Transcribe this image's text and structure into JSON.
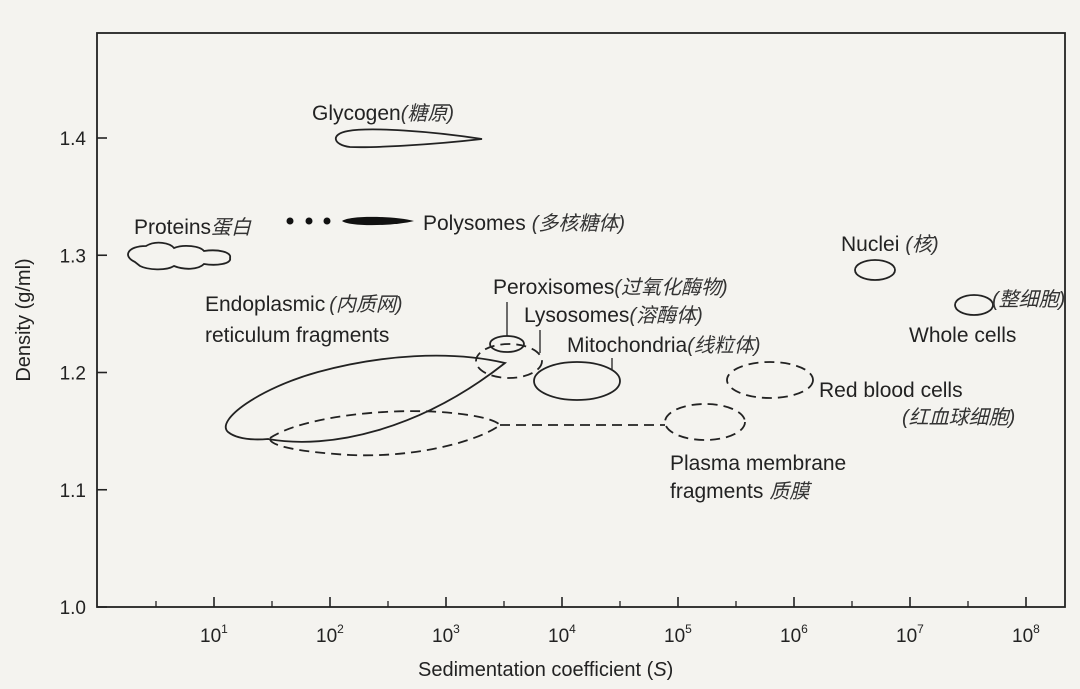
{
  "chart_data": {
    "type": "scatter",
    "title": "",
    "xlabel": "Sedimentation coefficient",
    "xlabel_unit": "S",
    "ylabel": "Density (g/ml)",
    "x_scale": "log",
    "xlim": [
      1,
      100000000.0
    ],
    "ylim": [
      1.0,
      1.4
    ],
    "x_ticks": [
      {
        "base": "10",
        "exp": "1"
      },
      {
        "base": "10",
        "exp": "2"
      },
      {
        "base": "10",
        "exp": "3"
      },
      {
        "base": "10",
        "exp": "4"
      },
      {
        "base": "10",
        "exp": "5"
      },
      {
        "base": "10",
        "exp": "6"
      },
      {
        "base": "10",
        "exp": "7"
      },
      {
        "base": "10",
        "exp": "8"
      }
    ],
    "y_ticks": [
      "1.0",
      "1.1",
      "1.2",
      "1.3",
      "1.4"
    ],
    "grid": false,
    "regions": [
      {
        "name": "Glycogen",
        "annotation": "(糖原)",
        "x_range": [
          100,
          2000
        ],
        "density": 1.4
      },
      {
        "name": "Proteins",
        "annotation": "蛋白",
        "x_range": [
          2,
          20
        ],
        "density": 1.3
      },
      {
        "name": "Polysomes",
        "annotation": "(多核糖体)",
        "x_range": [
          30,
          500
        ],
        "density": 1.33
      },
      {
        "name": "Nuclei",
        "annotation": "(核)",
        "x": 5000000,
        "density": 1.29
      },
      {
        "name": "Peroxisomes",
        "annotation": "(过氧化酶物)",
        "x": 3500,
        "density": 1.22
      },
      {
        "name": "Lysosomes",
        "annotation": "(溶酶体)",
        "x": 3000,
        "density": 1.21
      },
      {
        "name": "Endoplasmic reticulum fragments",
        "annotation": "(内质网)",
        "x_range": [
          20,
          4000
        ],
        "density_range": [
          1.15,
          1.21
        ]
      },
      {
        "name": "Mitochondria",
        "annotation": "(线粒体)",
        "x": 15000,
        "density": 1.19
      },
      {
        "name": "Whole cells",
        "annotation": "(整细胞)",
        "x": 50000000,
        "density": 1.26
      },
      {
        "name": "Red blood cells",
        "annotation": "(红血球细胞)",
        "x": 800000,
        "density": 1.19
      },
      {
        "name": "Plasma membrane fragments",
        "annotation": "质膜",
        "x_range": [
          30,
          200000
        ],
        "density_range": [
          1.13,
          1.17
        ]
      }
    ]
  },
  "labels": {
    "glycogen": "Glycogen",
    "glycogen_cn": "(糖原)",
    "proteins": "Proteins",
    "proteins_cn": "蛋白",
    "polysomes": "Polysomes",
    "polysomes_cn": "(多核糖体)",
    "nuclei": "Nuclei",
    "nuclei_cn": "(核)",
    "peroxisomes": "Peroxisomes",
    "peroxisomes_cn": "(过氧化酶物)",
    "endoplasmic_line1": "Endoplasmic",
    "endoplasmic_cn": "(内质网)",
    "endoplasmic_line2": "reticulum fragments",
    "lysosomes": "Lysosomes",
    "lysosomes_cn": "(溶酶体)",
    "mitochondria": "Mitochondria",
    "mitochondria_cn": "(线粒体)",
    "whole_cells_cn": "(整细胞)",
    "whole_cells": "Whole cells",
    "red_blood_cells": "Red blood cells",
    "red_blood_cells_cn": "(红血球细胞)",
    "plasma_line1": "Plasma membrane",
    "plasma_line2": "fragments",
    "plasma_cn": "质膜"
  }
}
